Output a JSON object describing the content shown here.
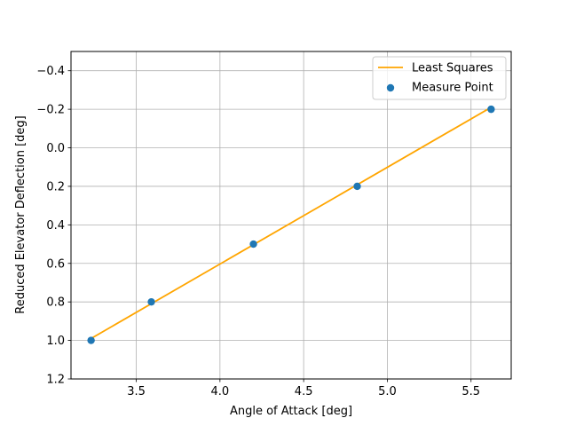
{
  "chart_data": {
    "type": "scatter",
    "xlabel": "Angle of Attack [deg]",
    "ylabel": "Reduced Elevator Deflection [deg]",
    "xlim": [
      3.11,
      5.74
    ],
    "ylim": [
      1.2,
      -0.5
    ],
    "y_inverted": true,
    "grid": true,
    "legend_position": "top-right",
    "x_ticks": [
      3.5,
      4.0,
      4.5,
      5.0,
      5.5
    ],
    "x_tick_labels": [
      "3.5",
      "4.0",
      "4.5",
      "5.0",
      "5.5"
    ],
    "y_ticks": [
      -0.4,
      -0.2,
      0.0,
      0.2,
      0.4,
      0.6,
      0.8,
      1.0,
      1.2
    ],
    "y_tick_labels": [
      "−0.4",
      "−0.2",
      "0.0",
      "0.2",
      "0.4",
      "0.6",
      "0.8",
      "1.0",
      "1.2"
    ],
    "series": [
      {
        "name": "Least Squares",
        "kind": "line",
        "color": "#ffa500",
        "x": [
          3.23,
          5.62
        ],
        "y": [
          0.99,
          -0.21
        ]
      },
      {
        "name": "Measure Point",
        "kind": "scatter",
        "color": "#1f77b4",
        "x": [
          3.23,
          3.59,
          4.2,
          4.82,
          5.62
        ],
        "y": [
          1.0,
          0.8,
          0.5,
          0.2,
          -0.2
        ]
      }
    ]
  }
}
